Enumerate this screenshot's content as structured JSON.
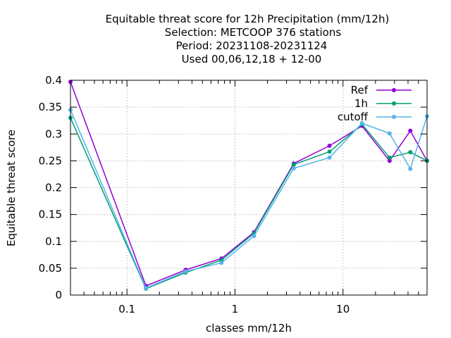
{
  "chart_data": {
    "type": "line",
    "title_lines": [
      "Equitable threat score  for 12h Precipitation (mm/12h)",
      "Selection: METCOOP    376 stations",
      "Period: 20231108-20231124",
      "Used  00,06,12,18 + 12-00"
    ],
    "xlabel": "classes mm/12h",
    "ylabel": "Equitable threat score",
    "x_scale": "log",
    "xlim": [
      0.03,
      60
    ],
    "ylim": [
      0,
      0.4
    ],
    "x_ticks": [
      0.1,
      1,
      10
    ],
    "x_tick_labels": [
      "0.1",
      "1",
      "10"
    ],
    "y_ticks": [
      0,
      0.05,
      0.1,
      0.15,
      0.2,
      0.25,
      0.3,
      0.35,
      0.4
    ],
    "y_tick_labels": [
      "0",
      "0.05",
      "0.1",
      "0.15",
      "0.2",
      "0.25",
      "0.3",
      "0.35",
      "0.4"
    ],
    "grid": true,
    "legend_position": "top-right",
    "x": [
      0.03,
      0.15,
      0.35,
      0.75,
      1.5,
      3.5,
      7.5,
      15,
      27,
      42,
      60
    ],
    "series": [
      {
        "name": "Ref",
        "color": "#9400d3",
        "values": [
          0.397,
          0.017,
          0.047,
          0.068,
          0.117,
          0.245,
          0.278,
          0.315,
          0.25,
          0.306,
          0.25
        ]
      },
      {
        "name": "1h",
        "color": "#009e73",
        "values": [
          0.33,
          0.012,
          0.042,
          0.065,
          0.115,
          0.243,
          0.267,
          0.318,
          0.256,
          0.266,
          0.25
        ]
      },
      {
        "name": "cutoff",
        "color": "#56b4e9",
        "values": [
          0.345,
          0.013,
          0.044,
          0.06,
          0.11,
          0.236,
          0.256,
          0.32,
          0.301,
          0.235,
          0.333
        ]
      }
    ]
  }
}
